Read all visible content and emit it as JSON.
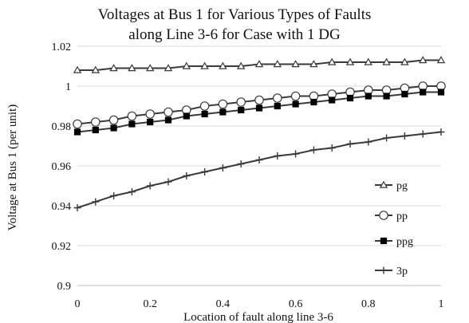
{
  "chart_data": {
    "type": "line",
    "title_lines": [
      "Voltages at Bus 1 for Various Types of  Faults",
      "along Line 3-6 for Case  with 1 DG"
    ],
    "xlabel": "Location of fault along line 3-6",
    "ylabel": "Voltage at Bus 1 (per unit)",
    "xlim": [
      0,
      1
    ],
    "ylim": [
      0.9,
      1.02
    ],
    "x_ticks": [
      "0",
      "0.2",
      "0.4",
      "0.6",
      "0.8",
      "1"
    ],
    "y_ticks": [
      "0.9",
      "0.92",
      "0.94",
      "0.96",
      "0.98",
      "1",
      "1.02"
    ],
    "grid": "horizontal",
    "legend_position": "right",
    "x": [
      0,
      0.05,
      0.1,
      0.15,
      0.2,
      0.25,
      0.3,
      0.35,
      0.4,
      0.45,
      0.5,
      0.55,
      0.6,
      0.65,
      0.7,
      0.75,
      0.8,
      0.85,
      0.9,
      0.95,
      1
    ],
    "series": [
      {
        "name": "pg",
        "marker": "triangle",
        "values": [
          1.008,
          1.008,
          1.009,
          1.009,
          1.009,
          1.009,
          1.01,
          1.01,
          1.01,
          1.01,
          1.011,
          1.011,
          1.011,
          1.011,
          1.012,
          1.012,
          1.012,
          1.012,
          1.012,
          1.013,
          1.013
        ]
      },
      {
        "name": "pp",
        "marker": "circle",
        "values": [
          0.981,
          0.982,
          0.983,
          0.985,
          0.986,
          0.987,
          0.988,
          0.99,
          0.991,
          0.992,
          0.993,
          0.994,
          0.995,
          0.995,
          0.996,
          0.997,
          0.998,
          0.998,
          0.999,
          1.0,
          1.0
        ]
      },
      {
        "name": "ppg",
        "marker": "square",
        "values": [
          0.977,
          0.978,
          0.979,
          0.981,
          0.982,
          0.983,
          0.985,
          0.986,
          0.987,
          0.988,
          0.989,
          0.99,
          0.991,
          0.992,
          0.993,
          0.994,
          0.995,
          0.995,
          0.996,
          0.997,
          0.997
        ]
      },
      {
        "name": "3p",
        "marker": "plus",
        "values": [
          0.939,
          0.942,
          0.945,
          0.947,
          0.95,
          0.952,
          0.955,
          0.957,
          0.959,
          0.961,
          0.963,
          0.965,
          0.966,
          0.968,
          0.969,
          0.971,
          0.972,
          0.974,
          0.975,
          0.976,
          0.977
        ]
      }
    ]
  },
  "colors": {
    "line": "#3a3a3a",
    "grid": "#d9d9d9",
    "axis": "#bfbfbf",
    "text": "#111111",
    "marker_fill_open": "#ffffff",
    "marker_fill_solid": "#000000"
  }
}
